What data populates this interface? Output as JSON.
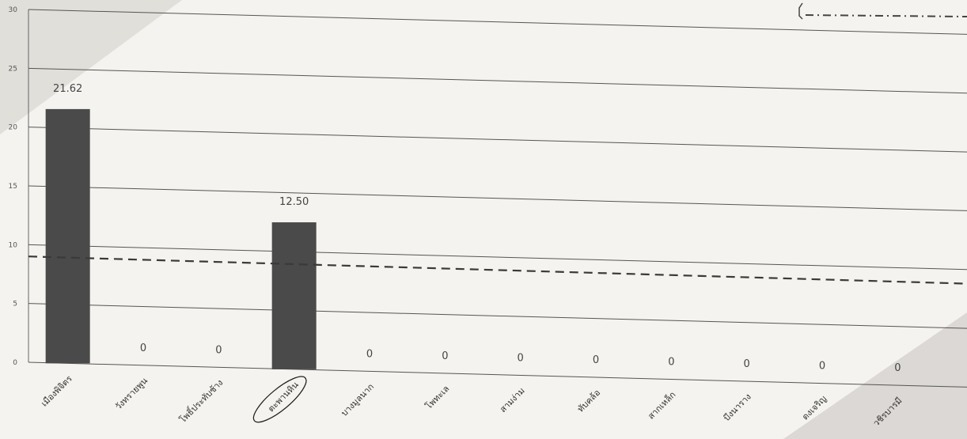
{
  "chart_data": {
    "type": "bar",
    "categories": [
      "เมืองพิจิตร",
      "วังทรายพูน",
      "โพธิ์ประทับช้าง",
      "ตะพานหิน",
      "บางมูลนาก",
      "โพทะเล",
      "สามง่าม",
      "ทับคล้อ",
      "สากเหล็ก",
      "บึงนาราง",
      "ดงเจริญ",
      "วชิรบารมี"
    ],
    "values": [
      21.62,
      0,
      0,
      12.5,
      0,
      0,
      0,
      0,
      0,
      0,
      0,
      0
    ],
    "value_labels": [
      "21.62",
      "0",
      "0",
      "12.50",
      "0",
      "0",
      "0",
      "0",
      "0",
      "0",
      "0",
      "0"
    ],
    "highlighted_category": "ตะพานหิน",
    "reference_line": {
      "value": 9,
      "style": "dashed"
    },
    "y_ticks": [
      "0",
      "5",
      "10",
      "15",
      "20",
      "25",
      "30"
    ],
    "ylim": [
      0,
      30
    ],
    "grid": true,
    "bar_color": "#4a4a4a",
    "gridline_color": "#555555",
    "reference_line_color": "#3a3a3a",
    "legend_placement": "top-right"
  }
}
